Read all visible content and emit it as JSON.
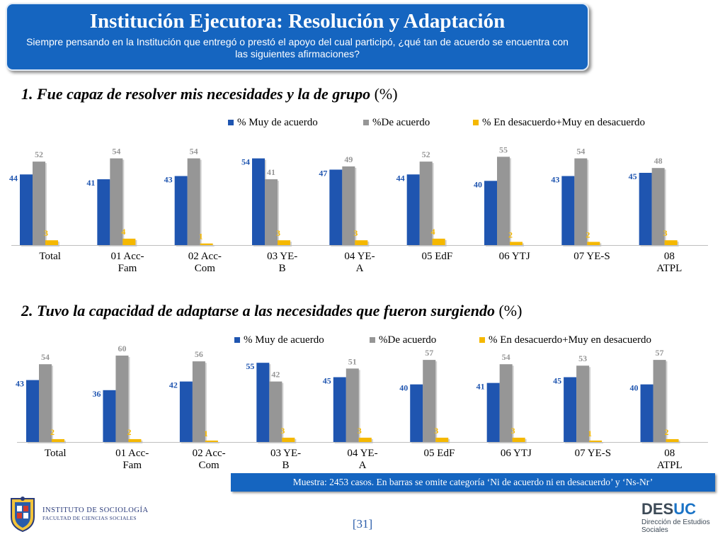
{
  "header": {
    "title": "Institución Ejecutora: Resolución y Adaptación",
    "subtitle": "Siempre pensando en la Institución que entregó o prestó el apoyo del cual participó, ¿qué tan de acuerdo se encuentra con las siguientes afirmaciones?"
  },
  "colors": {
    "series1": "#1f55b0",
    "series2": "#969696",
    "series3": "#f5b800",
    "header_bg": "#1565c0"
  },
  "chart_data": [
    {
      "type": "bar",
      "title": "1. Fue capaz de resolver mis necesidades y la de grupo",
      "title_suffix": "(%)",
      "categories": [
        [
          "Total"
        ],
        [
          "01 Acc-",
          "Fam"
        ],
        [
          "02 Acc-",
          "Com"
        ],
        [
          "03 YE-",
          "B"
        ],
        [
          "04 YE-",
          "A"
        ],
        [
          "05 EdF"
        ],
        [
          "06 YTJ"
        ],
        [
          "07 YE-S"
        ],
        [
          "08",
          "ATPL"
        ]
      ],
      "series": [
        {
          "name": "% Muy de acuerdo",
          "values": [
            44,
            41,
            43,
            54,
            47,
            44,
            40,
            43,
            45
          ]
        },
        {
          "name": "%De acuerdo",
          "values": [
            52,
            54,
            54,
            41,
            49,
            52,
            55,
            54,
            48
          ]
        },
        {
          "name": "% En desacuerdo+Muy en desacuerdo",
          "values": [
            3,
            4,
            1,
            3,
            3,
            4,
            2,
            2,
            3
          ]
        }
      ],
      "ylim": [
        0,
        60
      ],
      "grid": false,
      "legend_position": "top"
    },
    {
      "type": "bar",
      "title": "2. Tuvo la capacidad de adaptarse a las necesidades que fueron surgiendo",
      "title_suffix": "(%)",
      "categories": [
        [
          "Total"
        ],
        [
          "01 Acc-",
          "Fam"
        ],
        [
          "02 Acc-",
          "Com"
        ],
        [
          "03 YE-",
          "B"
        ],
        [
          "04 YE-",
          "A"
        ],
        [
          "05 EdF"
        ],
        [
          "06 YTJ"
        ],
        [
          "07 YE-S"
        ],
        [
          "08",
          "ATPL"
        ]
      ],
      "series": [
        {
          "name": "% Muy de acuerdo",
          "values": [
            43,
            36,
            42,
            55,
            45,
            40,
            41,
            45,
            40
          ]
        },
        {
          "name": "%De acuerdo",
          "values": [
            54,
            60,
            56,
            42,
            51,
            57,
            54,
            53,
            57
          ]
        },
        {
          "name": "% En desacuerdo+Muy en desacuerdo",
          "values": [
            2,
            2,
            1,
            3,
            3,
            3,
            3,
            1,
            2
          ]
        }
      ],
      "ylim": [
        0,
        60
      ],
      "grid": false,
      "legend_position": "top"
    }
  ],
  "note": "Muestra: 2453 casos. En barras se omite categoría ‘Ni de acuerdo ni en desacuerdo’ y ‘Ns-Nr’",
  "footer": {
    "institute_line1": "INSTITUTO DE SOCIOLOGÍA",
    "institute_line2": "FACULTAD DE CIENCIAS SOCIALES",
    "page_number": "[31]",
    "desuc_brand_a": "DES",
    "desuc_brand_b": "UC",
    "desuc_sub1": "Dirección de Estudios",
    "desuc_sub2": "Sociales"
  }
}
